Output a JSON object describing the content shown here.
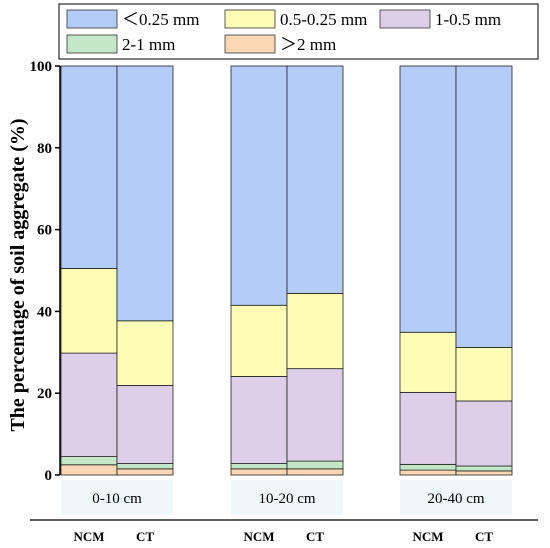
{
  "chart_data": {
    "type": "bar",
    "stacked": true,
    "ylabel": "The percentage of soil aggregate (%)",
    "ylim": [
      0,
      100
    ],
    "yticks": [
      "0",
      "20",
      "40",
      "60",
      "80",
      "100"
    ],
    "groups": [
      "0-10 cm",
      "10-20 cm",
      "20-40 cm"
    ],
    "treatments": [
      "NCM",
      "CT"
    ],
    "categories": [
      "NCM 0-10 cm",
      "CT 0-10 cm",
      "NCM 10-20 cm",
      "CT 10-20 cm",
      "NCM 20-40 cm",
      "CT 20-40 cm"
    ],
    "series": [
      {
        "name": ">2 mm",
        "label": "＞2 mm",
        "color": "#fcd7b3",
        "values": [
          2.5,
          1.5,
          1.5,
          1.5,
          1.2,
          1.0
        ]
      },
      {
        "name": "2-1 mm",
        "label": "2-1 mm",
        "color": "#c4e8c6",
        "values": [
          2.0,
          1.3,
          1.3,
          1.9,
          1.4,
          1.2
        ]
      },
      {
        "name": "1-0.5 mm",
        "label": "1-0.5 mm",
        "color": "#decfe8",
        "values": [
          25.3,
          19.1,
          21.3,
          22.6,
          17.6,
          15.9
        ]
      },
      {
        "name": "0.5-0.25 mm",
        "label": "0.5-0.25 mm",
        "color": "#fdfdb8",
        "values": [
          20.7,
          15.8,
          17.4,
          18.4,
          14.7,
          13.1
        ]
      },
      {
        "name": "<0.25 mm",
        "label": "＜0.25 mm",
        "color": "#b4cdf8",
        "values": [
          49.5,
          62.3,
          58.5,
          55.6,
          65.1,
          68.8
        ]
      }
    ],
    "legend_order": [
      "<0.25 mm",
      "0.5-0.25 mm",
      "1-0.5 mm",
      "2-1 mm",
      ">2 mm"
    ],
    "legend_position": "top",
    "grid": false
  }
}
